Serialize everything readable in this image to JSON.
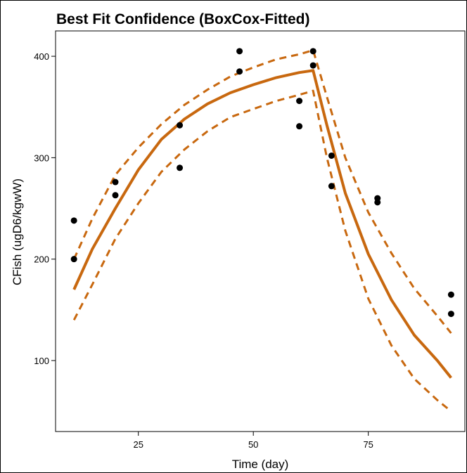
{
  "chart_data": {
    "type": "line",
    "title": "Best Fit Confidence (BoxCox-Fitted)",
    "xlabel": "Time  (day)",
    "ylabel": "CFish  (ugD6/kgwW)",
    "xlim": [
      7,
      96
    ],
    "ylim": [
      30,
      425
    ],
    "xticks": [
      25,
      50,
      75
    ],
    "yticks": [
      100,
      200,
      300,
      400
    ],
    "grid": false,
    "line_color": "#C8680F",
    "point_color": "#000000",
    "series": [
      {
        "style": "solid",
        "x": [
          11,
          15,
          20,
          25,
          30,
          35,
          40,
          45,
          50,
          55,
          60,
          63,
          66,
          70,
          75,
          80,
          85,
          90,
          93
        ],
        "y": [
          170,
          210,
          250,
          288,
          318,
          338,
          353,
          364,
          372,
          379,
          384,
          386,
          332,
          265,
          205,
          160,
          125,
          100,
          83
        ]
      },
      {
        "style": "dashed",
        "x": [
          11,
          15,
          20,
          25,
          30,
          35,
          40,
          45,
          50,
          55,
          60,
          63,
          66,
          70,
          75,
          80,
          85,
          90,
          93
        ],
        "y": [
          200,
          240,
          283,
          310,
          333,
          352,
          367,
          380,
          389,
          397,
          402,
          406,
          360,
          300,
          246,
          206,
          171,
          144,
          127
        ]
      },
      {
        "style": "dashed",
        "x": [
          11,
          15,
          20,
          25,
          30,
          35,
          40,
          45,
          50,
          55,
          60,
          63,
          66,
          70,
          75,
          80,
          85,
          90,
          93
        ],
        "y": [
          140,
          175,
          220,
          255,
          286,
          308,
          326,
          340,
          348,
          356,
          362,
          366,
          300,
          228,
          161,
          115,
          82,
          61,
          50
        ]
      },
      {
        "style": "points",
        "x": [
          11,
          11,
          20,
          20,
          34,
          34,
          47,
          47,
          60,
          60,
          63,
          63,
          67,
          67,
          77,
          77,
          93,
          93
        ],
        "y": [
          238,
          200,
          276,
          263,
          332,
          290,
          405,
          385,
          356,
          331,
          405,
          391,
          302,
          272,
          260,
          256,
          165,
          146
        ]
      }
    ]
  }
}
